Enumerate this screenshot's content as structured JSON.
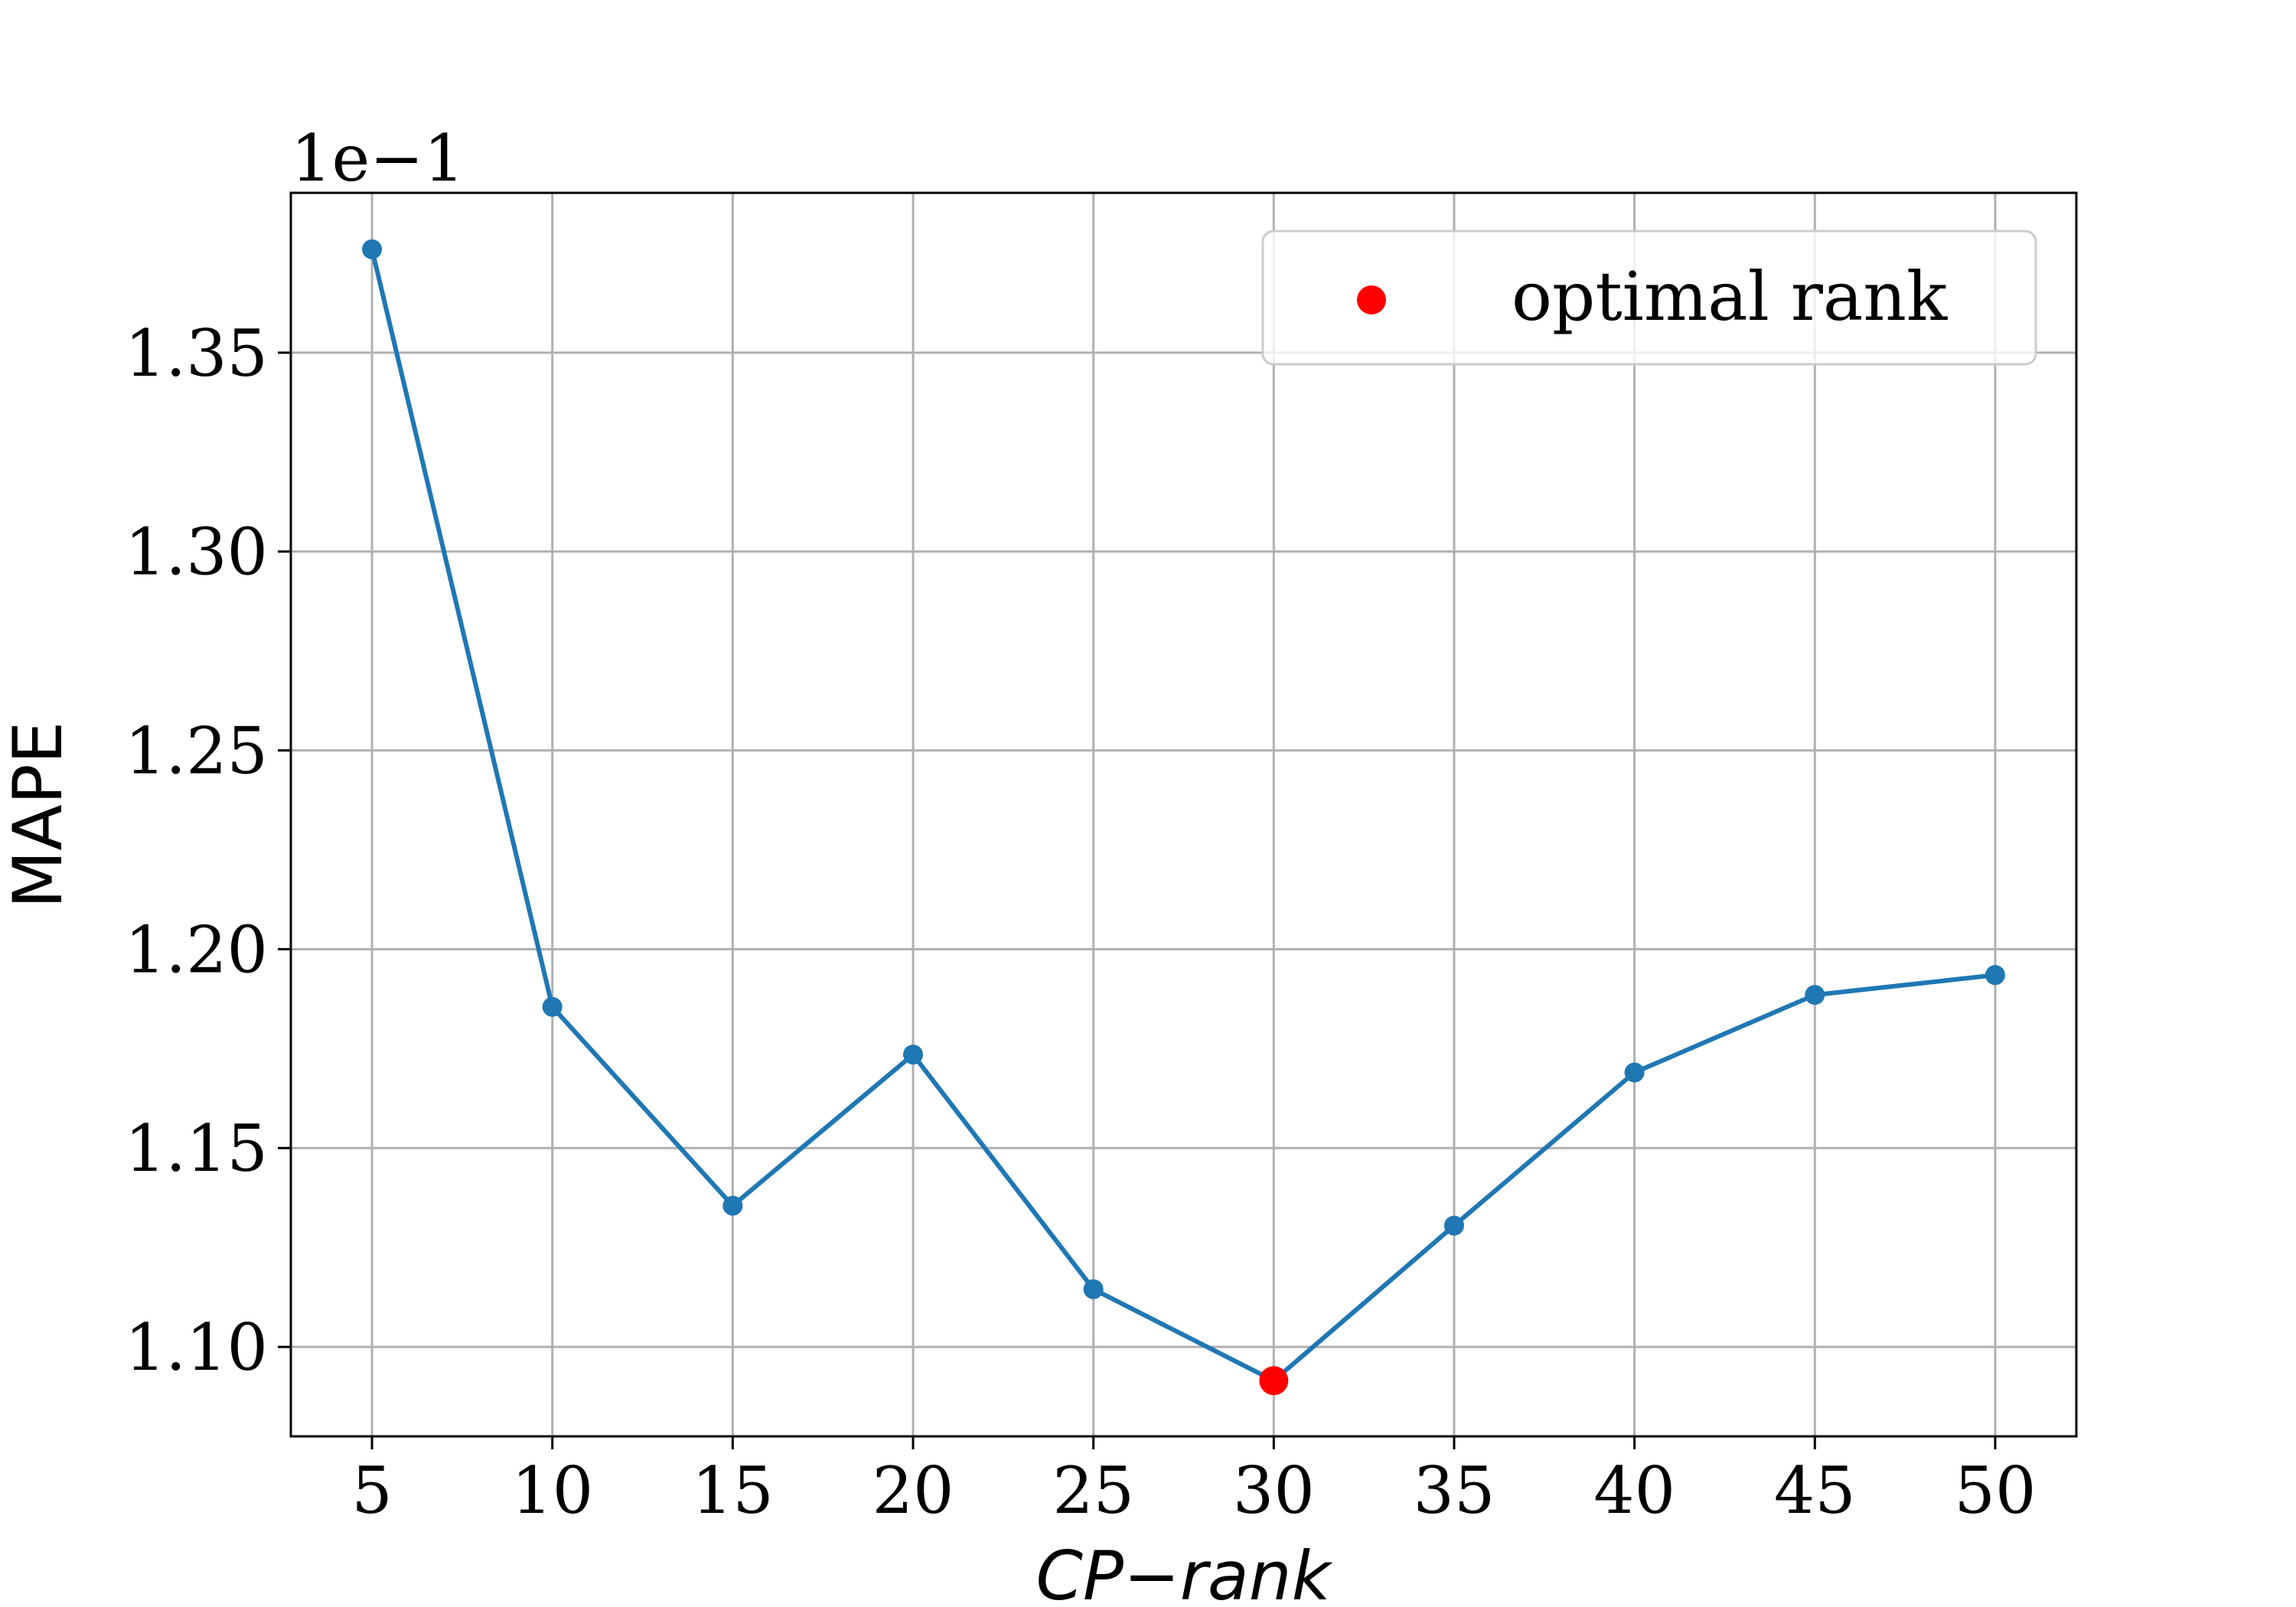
{
  "chart_data": {
    "type": "line",
    "xlabel": "CP−rank",
    "ylabel": "MAPE",
    "y_offset_label": "1e−1",
    "x": [
      5,
      10,
      15,
      20,
      25,
      30,
      35,
      40,
      45,
      50
    ],
    "x_ticks": [
      "5",
      "10",
      "15",
      "20",
      "25",
      "30",
      "35",
      "40",
      "45",
      "50"
    ],
    "y_ticks": [
      "1.10",
      "1.15",
      "1.20",
      "1.25",
      "1.30",
      "1.35"
    ],
    "xlim": [
      2.75,
      52.25
    ],
    "ylim": [
      1.0775,
      1.3902
    ],
    "grid": true,
    "series": [
      {
        "values": [
          1.376,
          1.1855,
          1.1355,
          1.1735,
          1.1145,
          1.0915,
          1.1305,
          1.169,
          1.1885,
          1.1935
        ],
        "color": "#1f77b4"
      }
    ],
    "highlight": {
      "x": 30,
      "y": 1.0915,
      "color": "#ff0000",
      "name": "optimal rank"
    },
    "legend": {
      "placement": "upper-right",
      "entries": [
        "optimal rank"
      ]
    }
  }
}
